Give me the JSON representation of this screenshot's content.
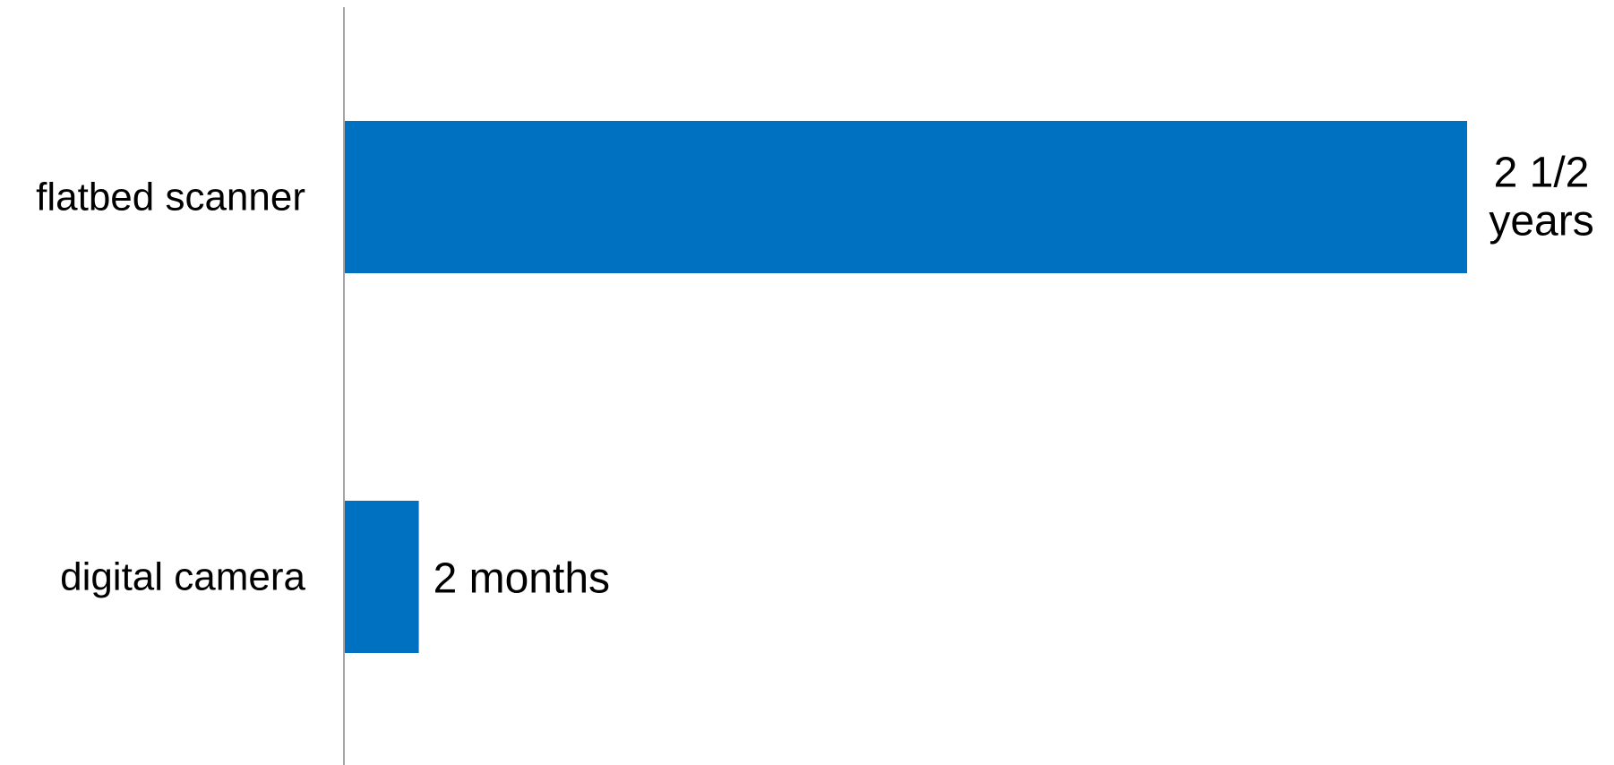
{
  "chart_data": {
    "type": "bar",
    "orientation": "horizontal",
    "categories": [
      "flatbed scanner",
      "digital camera"
    ],
    "values": [
      30,
      2
    ],
    "unit": "months",
    "data_labels": [
      [
        "2 1/2",
        "years"
      ],
      [
        "2 months"
      ]
    ],
    "title": "",
    "xlabel": "",
    "ylabel": "",
    "xlim": [
      0,
      30
    ],
    "grid": false,
    "legend": "none",
    "bar_color": "#0070C0",
    "axis_color": "#A6A6A6"
  }
}
